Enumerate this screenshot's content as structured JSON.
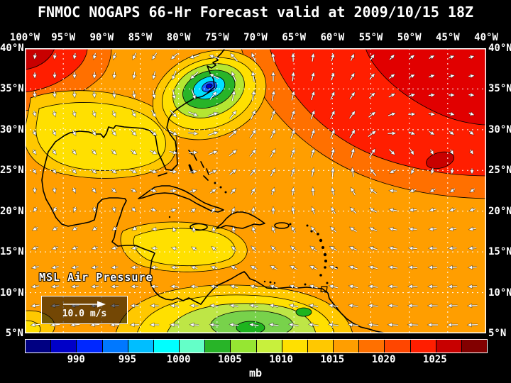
{
  "title": "FNMOC NOGAPS 66-Hr Forecast valid at 2009/10/15 18Z",
  "map": {
    "lon_labels": [
      "100°W",
      "95°W",
      "90°W",
      "85°W",
      "80°W",
      "75°W",
      "70°W",
      "65°W",
      "60°W",
      "55°W",
      "50°W",
      "45°W",
      "40°W"
    ],
    "lat_labels": [
      "40°N",
      "35°N",
      "30°N",
      "25°N",
      "20°N",
      "15°N",
      "10°N",
      "5°N"
    ],
    "overlay_label": "MSL Air Pressure",
    "wind_legend_label": "10.0 m/s"
  },
  "colorbar": {
    "tick_labels": [
      "990",
      "995",
      "1000",
      "1005",
      "1010",
      "1015",
      "1020",
      "1025"
    ],
    "unit_label": "mb",
    "segment_colors": [
      "#000082",
      "#0000C8",
      "#0028FF",
      "#0078FF",
      "#00BEFF",
      "#00FFFF",
      "#64FFC8",
      "#28B428",
      "#96E632",
      "#C8F03C",
      "#FFE000",
      "#FFC800",
      "#FF9E00",
      "#FF7000",
      "#FF4600",
      "#FF1E00",
      "#C80000",
      "#820000"
    ]
  },
  "chart_data": {
    "type": "heatmap",
    "title": "FNMOC NOGAPS 66-Hr Forecast valid at 2009/10/15 18Z",
    "source": "FNMOC",
    "model": "NOGAPS",
    "forecast_hour": 66,
    "valid_time": "2009/10/15 18Z",
    "variable": "MSL Air Pressure",
    "units": "mb",
    "overlay": "surface wind vectors, reference arrow 10.0 m/s",
    "x_axis": {
      "label": "longitude",
      "ticks": [
        "100°W",
        "95°W",
        "90°W",
        "85°W",
        "80°W",
        "75°W",
        "70°W",
        "65°W",
        "60°W",
        "55°W",
        "50°W",
        "45°W",
        "40°W"
      ]
    },
    "y_axis": {
      "label": "latitude",
      "ticks": [
        "40°N",
        "35°N",
        "30°N",
        "25°N",
        "20°N",
        "15°N",
        "10°N",
        "5°N"
      ]
    },
    "colorbar": {
      "tick_values_mb": [
        990,
        995,
        1000,
        1005,
        1010,
        1015,
        1020,
        1025
      ],
      "estimated_range_mb": [
        985,
        1030
      ],
      "estimated_step_mb": 2.5,
      "colors": [
        "#000082",
        "#0000C8",
        "#0028FF",
        "#0078FF",
        "#00BEFF",
        "#00FFFF",
        "#64FFC8",
        "#28B428",
        "#96E632",
        "#C8F03C",
        "#FFE000",
        "#FFC800",
        "#FF9E00",
        "#FF7000",
        "#FF4600",
        "#FF1E00",
        "#C80000",
        "#820000"
      ]
    },
    "features": [
      {
        "name": "closed cyclone / low",
        "approx_position": "76°W, 35°N off the US East Coast",
        "approx_central_pressure_mb": 990,
        "circulation": "counter-clockwise"
      },
      {
        "name": "broad high pressure",
        "region": "central and northeastern Atlantic, also northwest corner",
        "approx_pressure_mb": 1020
      },
      {
        "name": "lower pressure band",
        "region": "northern South America / southern Caribbean",
        "approx_pressure_mb": 1005
      }
    ],
    "grid": "5-degree white dashed graticule"
  }
}
